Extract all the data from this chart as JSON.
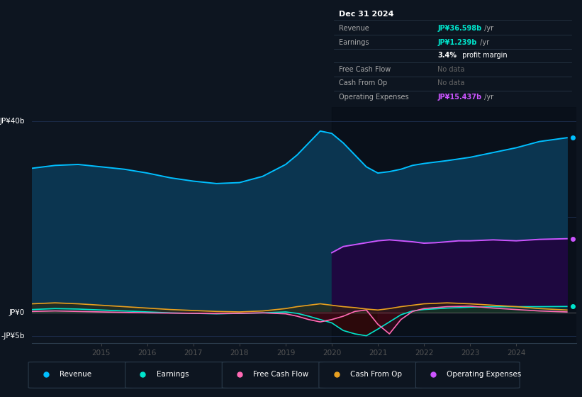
{
  "background_color": "#0d1520",
  "plot_bg_color": "#0d1520",
  "grid_color": "#1a2a3a",
  "revenue_color": "#00bfff",
  "revenue_fill": "#0a3550",
  "earnings_color": "#00e5cc",
  "fcf_color": "#ff69b4",
  "cashfromop_color": "#e8a020",
  "opex_color": "#cc55ff",
  "opex_fill": "#2d0a55",
  "legend_items": [
    "Revenue",
    "Earnings",
    "Free Cash Flow",
    "Cash From Op",
    "Operating Expenses"
  ],
  "legend_colors": [
    "#00bfff",
    "#00e5cc",
    "#ff69b4",
    "#e8a020",
    "#cc55ff"
  ],
  "info_box": {
    "title": "Dec 31 2024",
    "rows": [
      {
        "label": "Revenue",
        "value": "JP¥36.598b /yr",
        "vcolor": "#00e5cc"
      },
      {
        "label": "Earnings",
        "value": "JP¥1.239b /yr",
        "vcolor": "#00e5cc"
      },
      {
        "label": "",
        "value": "3.4% profit margin",
        "vcolor": "#ffffff"
      },
      {
        "label": "Free Cash Flow",
        "value": "No data",
        "vcolor": "#666666"
      },
      {
        "label": "Cash From Op",
        "value": "No data",
        "vcolor": "#666666"
      },
      {
        "label": "Operating Expenses",
        "value": "JP¥15.437b /yr",
        "vcolor": "#cc55ff"
      }
    ],
    "box_bg": "#080c10",
    "box_border": "#2a3a4a",
    "text_color": "#aaaaaa",
    "title_color": "#ffffff"
  },
  "revenue": [
    [
      2013.5,
      30.2
    ],
    [
      2014.0,
      30.8
    ],
    [
      2014.5,
      31.0
    ],
    [
      2015.0,
      30.5
    ],
    [
      2015.5,
      30.0
    ],
    [
      2016.0,
      29.2
    ],
    [
      2016.5,
      28.2
    ],
    [
      2017.0,
      27.5
    ],
    [
      2017.5,
      27.0
    ],
    [
      2018.0,
      27.2
    ],
    [
      2018.5,
      28.5
    ],
    [
      2019.0,
      31.0
    ],
    [
      2019.25,
      33.0
    ],
    [
      2019.5,
      35.5
    ],
    [
      2019.75,
      38.0
    ],
    [
      2020.0,
      37.5
    ],
    [
      2020.25,
      35.5
    ],
    [
      2020.5,
      33.0
    ],
    [
      2020.75,
      30.5
    ],
    [
      2021.0,
      29.2
    ],
    [
      2021.25,
      29.5
    ],
    [
      2021.5,
      30.0
    ],
    [
      2021.75,
      30.8
    ],
    [
      2022.0,
      31.2
    ],
    [
      2022.5,
      31.8
    ],
    [
      2023.0,
      32.5
    ],
    [
      2023.5,
      33.5
    ],
    [
      2024.0,
      34.5
    ],
    [
      2024.5,
      35.8
    ],
    [
      2025.1,
      36.6
    ]
  ],
  "earnings": [
    [
      2013.5,
      0.6
    ],
    [
      2014.0,
      0.8
    ],
    [
      2014.5,
      0.7
    ],
    [
      2015.0,
      0.5
    ],
    [
      2015.5,
      0.3
    ],
    [
      2016.0,
      0.1
    ],
    [
      2016.5,
      -0.1
    ],
    [
      2017.0,
      -0.2
    ],
    [
      2017.5,
      -0.3
    ],
    [
      2018.0,
      -0.2
    ],
    [
      2018.5,
      -0.1
    ],
    [
      2019.0,
      0.1
    ],
    [
      2019.25,
      -0.2
    ],
    [
      2019.5,
      -0.8
    ],
    [
      2019.75,
      -1.5
    ],
    [
      2020.0,
      -2.2
    ],
    [
      2020.25,
      -3.8
    ],
    [
      2020.5,
      -4.5
    ],
    [
      2020.75,
      -4.9
    ],
    [
      2021.0,
      -3.5
    ],
    [
      2021.25,
      -2.0
    ],
    [
      2021.5,
      -0.5
    ],
    [
      2021.75,
      0.3
    ],
    [
      2022.0,
      0.6
    ],
    [
      2022.5,
      0.9
    ],
    [
      2023.0,
      1.1
    ],
    [
      2023.5,
      1.2
    ],
    [
      2024.0,
      1.2
    ],
    [
      2024.5,
      1.2
    ],
    [
      2025.1,
      1.24
    ]
  ],
  "fcf": [
    [
      2013.5,
      0.2
    ],
    [
      2014.0,
      0.3
    ],
    [
      2014.5,
      0.2
    ],
    [
      2015.0,
      0.1
    ],
    [
      2015.5,
      0.0
    ],
    [
      2016.0,
      -0.1
    ],
    [
      2016.5,
      -0.15
    ],
    [
      2017.0,
      -0.2
    ],
    [
      2017.5,
      -0.25
    ],
    [
      2018.0,
      -0.2
    ],
    [
      2018.5,
      -0.1
    ],
    [
      2019.0,
      -0.3
    ],
    [
      2019.25,
      -0.8
    ],
    [
      2019.5,
      -1.5
    ],
    [
      2019.75,
      -2.0
    ],
    [
      2020.0,
      -1.5
    ],
    [
      2020.25,
      -0.8
    ],
    [
      2020.5,
      0.2
    ],
    [
      2020.75,
      0.5
    ],
    [
      2021.0,
      -2.5
    ],
    [
      2021.25,
      -4.5
    ],
    [
      2021.5,
      -1.5
    ],
    [
      2021.75,
      0.2
    ],
    [
      2022.0,
      0.8
    ],
    [
      2022.5,
      1.2
    ],
    [
      2023.0,
      1.3
    ],
    [
      2023.5,
      0.9
    ],
    [
      2024.0,
      0.6
    ],
    [
      2024.5,
      0.3
    ],
    [
      2025.1,
      0.1
    ]
  ],
  "cashfromop": [
    [
      2013.5,
      1.8
    ],
    [
      2014.0,
      2.0
    ],
    [
      2014.5,
      1.8
    ],
    [
      2015.0,
      1.5
    ],
    [
      2015.5,
      1.2
    ],
    [
      2016.0,
      0.9
    ],
    [
      2016.5,
      0.6
    ],
    [
      2017.0,
      0.4
    ],
    [
      2017.5,
      0.2
    ],
    [
      2018.0,
      0.1
    ],
    [
      2018.5,
      0.3
    ],
    [
      2019.0,
      0.8
    ],
    [
      2019.25,
      1.2
    ],
    [
      2019.5,
      1.5
    ],
    [
      2019.75,
      1.8
    ],
    [
      2020.0,
      1.5
    ],
    [
      2020.25,
      1.2
    ],
    [
      2020.5,
      1.0
    ],
    [
      2020.75,
      0.7
    ],
    [
      2021.0,
      0.5
    ],
    [
      2021.25,
      0.8
    ],
    [
      2021.5,
      1.2
    ],
    [
      2021.75,
      1.5
    ],
    [
      2022.0,
      1.8
    ],
    [
      2022.5,
      2.0
    ],
    [
      2023.0,
      1.8
    ],
    [
      2023.5,
      1.5
    ],
    [
      2024.0,
      1.2
    ],
    [
      2024.5,
      0.8
    ],
    [
      2025.1,
      0.5
    ]
  ],
  "opex": [
    [
      2020.0,
      12.5
    ],
    [
      2020.25,
      13.8
    ],
    [
      2020.5,
      14.2
    ],
    [
      2020.75,
      14.6
    ],
    [
      2021.0,
      15.0
    ],
    [
      2021.25,
      15.2
    ],
    [
      2021.5,
      15.0
    ],
    [
      2021.75,
      14.8
    ],
    [
      2022.0,
      14.5
    ],
    [
      2022.25,
      14.6
    ],
    [
      2022.5,
      14.8
    ],
    [
      2022.75,
      15.0
    ],
    [
      2023.0,
      15.0
    ],
    [
      2023.5,
      15.2
    ],
    [
      2024.0,
      15.0
    ],
    [
      2024.5,
      15.3
    ],
    [
      2025.1,
      15.44
    ]
  ],
  "xlim": [
    2013.5,
    2025.3
  ],
  "ylim": [
    -6.5,
    43
  ],
  "xticks": [
    2015,
    2016,
    2017,
    2018,
    2019,
    2020,
    2021,
    2022,
    2023,
    2024
  ],
  "y_label_40": "JP¥40b",
  "y_label_0": "JP¥0",
  "y_label_m5": "-JP¥5b",
  "dark_region_start": 2020.0
}
